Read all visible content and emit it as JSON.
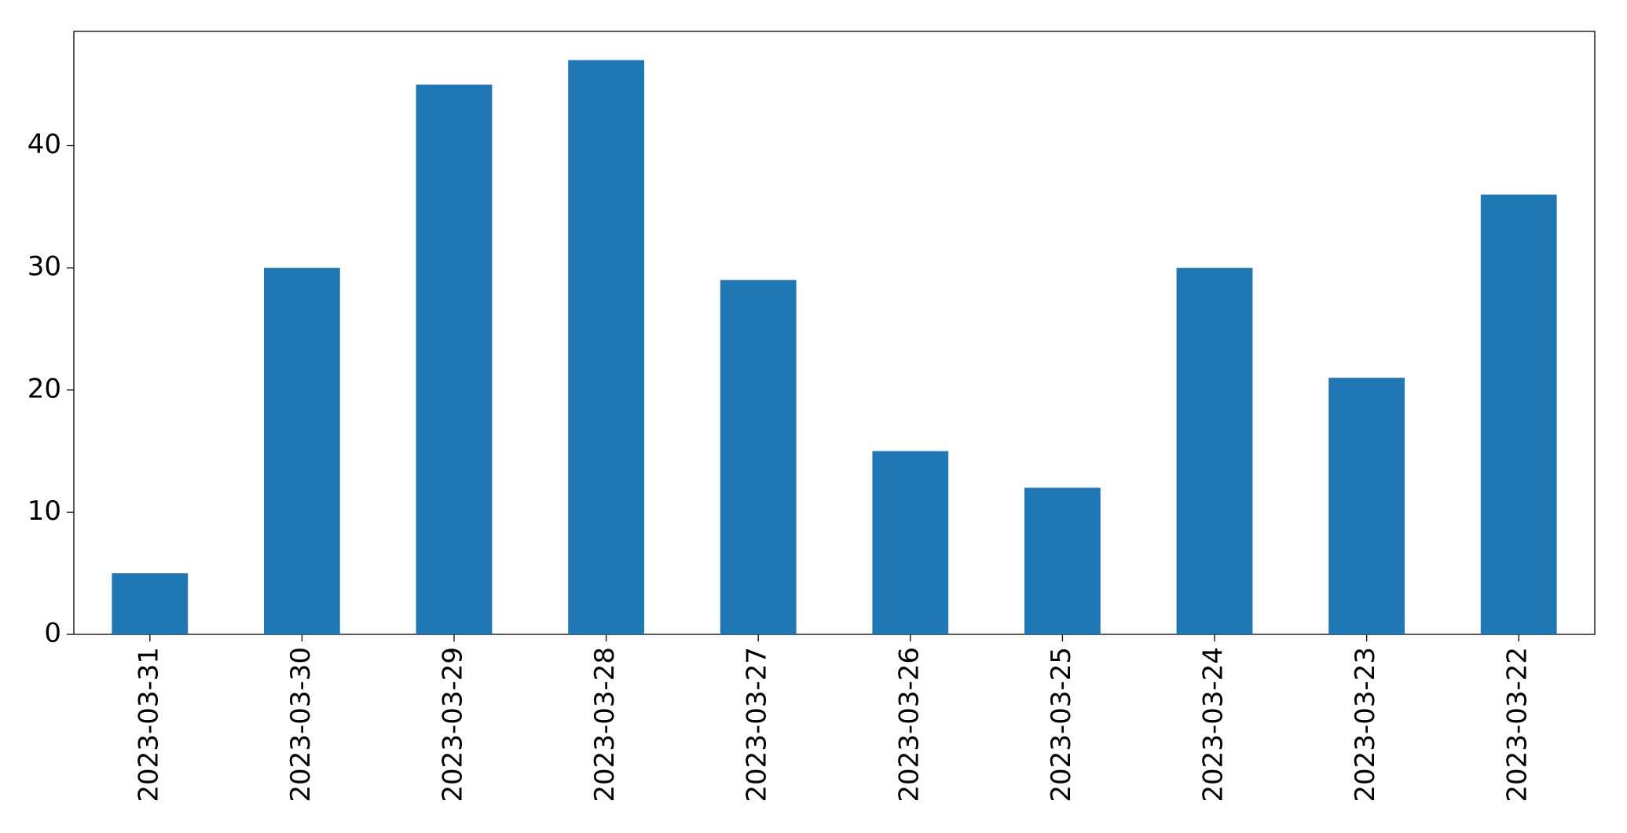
{
  "chart_data": {
    "type": "bar",
    "categories": [
      "2023-03-31",
      "2023-03-30",
      "2023-03-29",
      "2023-03-28",
      "2023-03-27",
      "2023-03-26",
      "2023-03-25",
      "2023-03-24",
      "2023-03-23",
      "2023-03-22"
    ],
    "values": [
      5,
      30,
      45,
      47,
      29,
      15,
      12,
      30,
      21,
      36
    ],
    "color": "#1f77b4",
    "ylim": [
      0,
      49.35
    ],
    "yticks": [
      0,
      10,
      20,
      30,
      40
    ],
    "grid": false
  }
}
